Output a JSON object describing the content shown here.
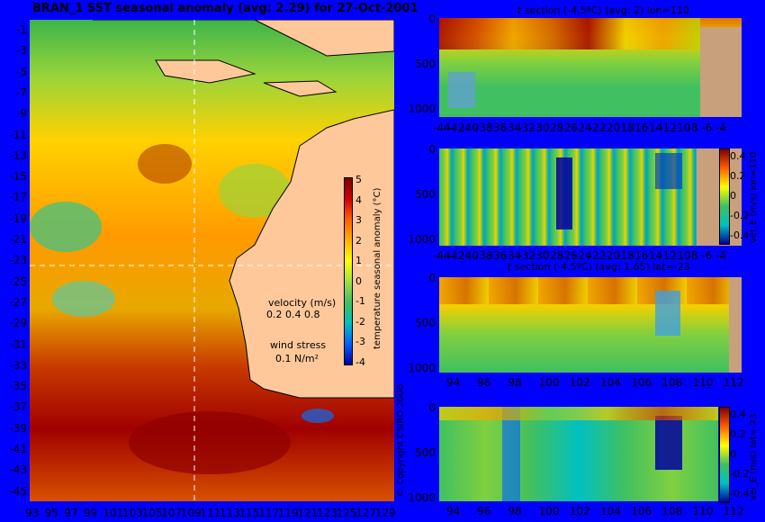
{
  "header": {
    "map_title": "BRAN_1  SST seasonal anomaly  (avg: 2.29) for 27-Oct-2001",
    "section1_title": "t section (-4.5ºC) (avg: 2) lon=110",
    "section3_title": "t section (-4.5ºC) (avg: 1.65) lat=-23"
  },
  "map": {
    "y_ticks": [
      "-1",
      "-3",
      "-5",
      "-7",
      "-9",
      "-11",
      "-13",
      "-15",
      "-17",
      "-19",
      "-21",
      "-23",
      "-25",
      "-27",
      "-29",
      "-31",
      "-33",
      "-35",
      "-37",
      "-39",
      "-41",
      "-43",
      "-45"
    ],
    "x_ticks": [
      "93",
      "95",
      "97",
      "99",
      "101",
      "103",
      "105",
      "107",
      "109",
      "111",
      "113",
      "115",
      "117",
      "119",
      "121",
      "123",
      "125",
      "127",
      "129"
    ],
    "colorbar_ticks": [
      "5",
      "4",
      "3",
      "2",
      "1",
      "0",
      "-1",
      "-2",
      "-3",
      "-4"
    ],
    "colorbar_label": "temperature seasonal anomaly (°C)",
    "velocity_label": "velocity (m/s)",
    "velocity_scale": "0.2 0.4 0.8",
    "wind_label": "wind stress",
    "wind_scale": "0.1 N/m²",
    "copyright": "© Copyright CSIRO 2006"
  },
  "sections": {
    "depth_ticks": [
      "0",
      "500",
      "1000"
    ],
    "lat_ticks": [
      "-44",
      "-42",
      "-40",
      "-38",
      "-36",
      "-34",
      "-32",
      "-30",
      "-28",
      "-26",
      "-24",
      "-22",
      "-20",
      "-18",
      "-16",
      "-14",
      "-12",
      "-10",
      "-8",
      "-6",
      "-4"
    ],
    "lon_ticks": [
      "94",
      "96",
      "98",
      "100",
      "102",
      "104",
      "106",
      "108",
      "110",
      "112"
    ],
    "vel_ticks": [
      "0.4",
      "0.2",
      "0",
      "-0.2",
      "-0.4"
    ],
    "vel_label_lon": "vel_E (m/s) lon=110",
    "vel_label_lat": "vel_E (m/s) lat=-23"
  },
  "colors": {
    "background": "#0000ff",
    "land": "#ffc89a",
    "seabed": "#c8a07c",
    "warm_anomaly": "#a00000",
    "cold_anomaly": "#00007f"
  }
}
